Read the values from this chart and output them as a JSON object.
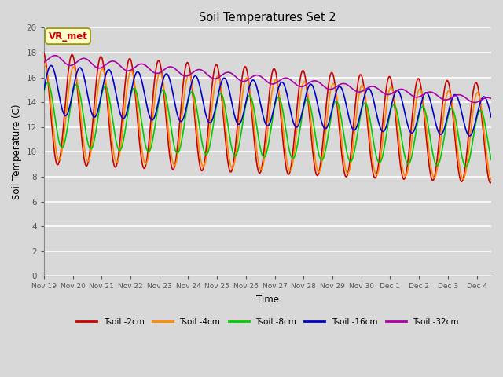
{
  "title": "Soil Temperatures Set 2",
  "xlabel": "Time",
  "ylabel": "Soil Temperature (C)",
  "ylim": [
    0,
    20
  ],
  "yticks": [
    0,
    2,
    4,
    6,
    8,
    10,
    12,
    14,
    16,
    18,
    20
  ],
  "xtick_labels": [
    "Nov 19",
    "Nov 20",
    "Nov 21",
    "Nov 22",
    "Nov 23",
    "Nov 24",
    "Nov 25",
    "Nov 26",
    "Nov 27",
    "Nov 28",
    "Nov 29",
    "Nov 30",
    "Dec 1",
    "Dec 2",
    "Dec 3",
    "Dec 4"
  ],
  "legend_labels": [
    "Tsoil -2cm",
    "Tsoil -4cm",
    "Tsoil -8cm",
    "Tsoil -16cm",
    "Tsoil -32cm"
  ],
  "legend_colors": [
    "#cc0000",
    "#ff8800",
    "#00cc00",
    "#0000cc",
    "#aa00aa"
  ],
  "annotation_text": "VR_met",
  "bg_color": "#d8d8d8",
  "num_days": 15.5,
  "n_points": 744
}
